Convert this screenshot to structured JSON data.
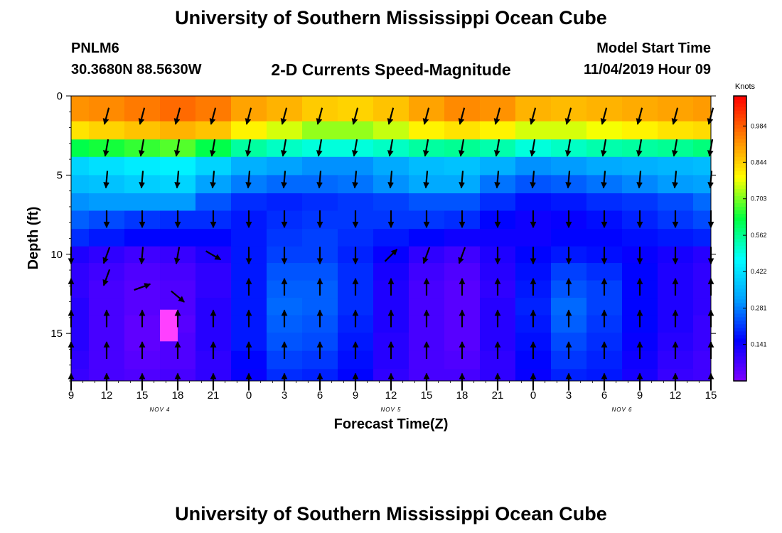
{
  "page": {
    "title_top": "University of Southern Mississippi Ocean Cube",
    "title_bottom": "University of Southern Mississippi Ocean Cube",
    "station": "PNLM6",
    "coords": "30.3680N 88.5630W",
    "chart_title": "2-D Currents Speed-Magnitude",
    "model_start_label": "Model Start Time",
    "model_start_value": "11/04/2019 Hour 09"
  },
  "chart_data": {
    "type": "heatmap",
    "title": "2-D Currents Speed-Magnitude",
    "xlabel": "Forecast Time(Z)",
    "ylabel": "Depth (ft)",
    "x_tick_labels": [
      "9",
      "12",
      "15",
      "18",
      "21",
      "0",
      "3",
      "6",
      "9",
      "12",
      "15",
      "18",
      "21",
      "0",
      "3",
      "6",
      "9",
      "12",
      "15"
    ],
    "x_hours": [
      0,
      3,
      6,
      9,
      12,
      15,
      18,
      21,
      24,
      27,
      30,
      33,
      36,
      39,
      42,
      45,
      48,
      51,
      54
    ],
    "day_labels": [
      {
        "label": "NOV 4",
        "hour": 7.5
      },
      {
        "label": "NOV 5",
        "hour": 27
      },
      {
        "label": "NOV 6",
        "hour": 46.5
      }
    ],
    "xlim": [
      0,
      54
    ],
    "y_ticks": [
      0,
      5,
      10,
      15
    ],
    "ylim": [
      0,
      18
    ],
    "y_inverted": true,
    "colorbar": {
      "label": "Knots",
      "ticks": [
        0.141,
        0.281,
        0.422,
        0.562,
        0.703,
        0.844,
        0.984
      ],
      "range": [
        0,
        1.1
      ]
    },
    "colormap": [
      "#8000ff",
      "#0000ff",
      "#00a0ff",
      "#00ffff",
      "#00ff40",
      "#ffff00",
      "#ff8000",
      "#ff0000"
    ],
    "x_grid_hours": [
      0,
      3,
      6,
      9,
      12,
      15,
      18,
      21,
      24,
      27,
      30,
      33,
      36,
      39,
      42,
      45,
      48,
      51,
      54
    ],
    "depth_levels_ft": [
      1,
      2.2,
      3.3,
      4.4,
      5.6,
      6.7,
      7.8,
      9,
      10,
      11.1,
      12.2,
      13.3,
      14.4,
      15.5,
      16.7,
      17.8
    ],
    "speed_knots": [
      [
        0.92,
        0.93,
        0.95,
        0.97,
        0.95,
        0.9,
        0.88,
        0.85,
        0.84,
        0.86,
        0.9,
        0.93,
        0.92,
        0.88,
        0.87,
        0.88,
        0.89,
        0.9,
        0.91
      ],
      [
        0.82,
        0.84,
        0.86,
        0.88,
        0.86,
        0.8,
        0.76,
        0.72,
        0.72,
        0.75,
        0.8,
        0.82,
        0.8,
        0.76,
        0.76,
        0.78,
        0.8,
        0.82,
        0.83
      ],
      [
        0.62,
        0.64,
        0.66,
        0.68,
        0.62,
        0.55,
        0.52,
        0.5,
        0.5,
        0.52,
        0.55,
        0.56,
        0.54,
        0.5,
        0.52,
        0.54,
        0.55,
        0.56,
        0.58
      ],
      [
        0.4,
        0.42,
        0.44,
        0.45,
        0.4,
        0.34,
        0.32,
        0.3,
        0.3,
        0.33,
        0.36,
        0.37,
        0.34,
        0.3,
        0.31,
        0.33,
        0.34,
        0.35,
        0.36
      ],
      [
        0.36,
        0.37,
        0.39,
        0.4,
        0.32,
        0.28,
        0.26,
        0.26,
        0.27,
        0.3,
        0.33,
        0.33,
        0.27,
        0.24,
        0.25,
        0.27,
        0.29,
        0.31,
        0.32
      ],
      [
        0.3,
        0.31,
        0.31,
        0.31,
        0.24,
        0.2,
        0.19,
        0.2,
        0.21,
        0.22,
        0.24,
        0.24,
        0.2,
        0.17,
        0.18,
        0.2,
        0.21,
        0.23,
        0.26
      ],
      [
        0.25,
        0.23,
        0.21,
        0.2,
        0.2,
        0.18,
        0.2,
        0.21,
        0.21,
        0.21,
        0.21,
        0.2,
        0.16,
        0.14,
        0.15,
        0.17,
        0.19,
        0.21,
        0.23
      ],
      [
        0.2,
        0.18,
        0.16,
        0.16,
        0.16,
        0.18,
        0.21,
        0.22,
        0.2,
        0.18,
        0.16,
        0.14,
        0.14,
        0.14,
        0.16,
        0.16,
        0.17,
        0.18,
        0.19
      ],
      [
        0.12,
        0.1,
        0.08,
        0.09,
        0.12,
        0.18,
        0.22,
        0.22,
        0.19,
        0.15,
        0.1,
        0.08,
        0.12,
        0.16,
        0.18,
        0.17,
        0.15,
        0.13,
        0.11
      ],
      [
        0.1,
        0.08,
        0.06,
        0.07,
        0.1,
        0.18,
        0.24,
        0.24,
        0.2,
        0.13,
        0.08,
        0.06,
        0.11,
        0.17,
        0.22,
        0.2,
        0.16,
        0.12,
        0.1
      ],
      [
        0.1,
        0.07,
        0.05,
        0.06,
        0.1,
        0.18,
        0.25,
        0.25,
        0.2,
        0.12,
        0.07,
        0.05,
        0.1,
        0.18,
        0.24,
        0.22,
        0.16,
        0.12,
        0.1
      ],
      [
        0.11,
        0.07,
        0.05,
        0.06,
        0.11,
        0.18,
        0.26,
        0.25,
        0.2,
        0.12,
        0.07,
        0.05,
        0.11,
        0.19,
        0.26,
        0.22,
        0.16,
        0.12,
        0.1
      ],
      [
        0.11,
        0.07,
        0.04,
        0.05,
        0.11,
        0.18,
        0.25,
        0.24,
        0.19,
        0.12,
        0.07,
        0.05,
        0.11,
        0.18,
        0.25,
        0.21,
        0.16,
        0.12,
        0.09
      ],
      [
        0.11,
        0.07,
        0.04,
        0.06,
        0.11,
        0.18,
        0.24,
        0.23,
        0.18,
        0.11,
        0.07,
        0.05,
        0.11,
        0.17,
        0.23,
        0.2,
        0.15,
        0.11,
        0.09
      ],
      [
        0.1,
        0.07,
        0.05,
        0.06,
        0.1,
        0.16,
        0.22,
        0.21,
        0.17,
        0.11,
        0.07,
        0.06,
        0.1,
        0.16,
        0.21,
        0.19,
        0.14,
        0.1,
        0.08
      ],
      [
        0.09,
        0.07,
        0.06,
        0.07,
        0.1,
        0.15,
        0.2,
        0.19,
        0.16,
        0.1,
        0.07,
        0.07,
        0.1,
        0.15,
        0.19,
        0.18,
        0.13,
        0.09,
        0.08
      ]
    ],
    "magenta_patch": {
      "hour_start": 7.5,
      "hour_end": 9,
      "depth_start": 13.5,
      "depth_end": 15.5,
      "color": "#ff40ff"
    },
    "arrow_hours": [
      0,
      3,
      6,
      9,
      12,
      15,
      18,
      21,
      24,
      27,
      30,
      33,
      36,
      39,
      42,
      45,
      48,
      51,
      54
    ],
    "arrow_depths_ft": [
      1,
      3,
      5,
      7.5,
      9.8,
      11.8,
      13.8,
      15.8,
      17.8
    ],
    "arrow_default_angles_deg": [
      -165,
      -170,
      -175,
      -180,
      -180,
      0,
      0,
      0,
      0
    ],
    "arrow_overrides": [
      {
        "hour": 0,
        "depth": 1,
        "show": false
      },
      {
        "hour": 0,
        "depth": 3,
        "show": false
      },
      {
        "hour": 0,
        "depth": 5,
        "show": false
      },
      {
        "hour": 0,
        "depth": 7.5,
        "show": false
      },
      {
        "hour": 3,
        "depth": 11.8,
        "show": false
      },
      {
        "hour": 6,
        "depth": 11.8,
        "show": false
      },
      {
        "hour": 9,
        "depth": 11.8,
        "show": false
      },
      {
        "hour": 12,
        "depth": 11.8,
        "show": false
      },
      {
        "hour": 3,
        "depth": 9.8,
        "angle": -160
      },
      {
        "hour": 6,
        "depth": 9.8,
        "angle": -175
      },
      {
        "hour": 9,
        "depth": 9.8,
        "angle": -170
      },
      {
        "hour": 12,
        "depth": 9.8,
        "angle": 120
      },
      {
        "hour": 6,
        "depth": 11.8,
        "angle": 70,
        "show": true,
        "dx": 0
      },
      {
        "hour": 3,
        "depth": 11.2,
        "angle": -160
      },
      {
        "hour": 9,
        "depth": 12.4,
        "angle": 130
      },
      {
        "hour": 27,
        "depth": 9.8,
        "angle": 45
      },
      {
        "hour": 30,
        "depth": 9.8,
        "angle": -160
      },
      {
        "hour": 33,
        "depth": 9.8,
        "angle": -160
      }
    ]
  }
}
